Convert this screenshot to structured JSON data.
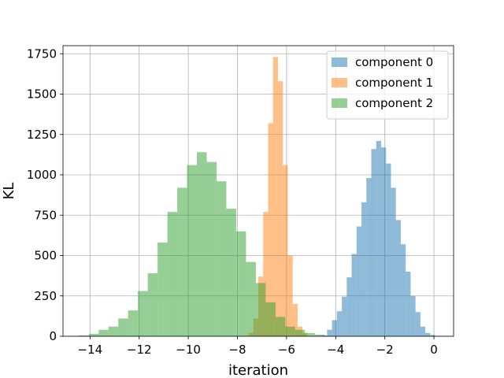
{
  "chart_data": {
    "type": "histogram",
    "title": "",
    "xlabel": "iteration",
    "ylabel": "KL",
    "xlim": [
      -15.1,
      0.8
    ],
    "ylim": [
      0,
      1800
    ],
    "xticks": [
      -14,
      -12,
      -10,
      -8,
      -6,
      -4,
      -2,
      0
    ],
    "yticks": [
      0,
      250,
      500,
      750,
      1000,
      1250,
      1500,
      1750
    ],
    "grid": true,
    "legend_position": "top-right",
    "series": [
      {
        "name": "component 0",
        "color": "#1f77b4",
        "alpha": 0.5,
        "bins": [
          {
            "x0": -4.55,
            "x1": -4.35,
            "count": 5
          },
          {
            "x0": -4.35,
            "x1": -4.15,
            "count": 40
          },
          {
            "x0": -4.15,
            "x1": -3.95,
            "count": 100
          },
          {
            "x0": -3.95,
            "x1": -3.75,
            "count": 155
          },
          {
            "x0": -3.75,
            "x1": -3.55,
            "count": 245
          },
          {
            "x0": -3.55,
            "x1": -3.35,
            "count": 365
          },
          {
            "x0": -3.35,
            "x1": -3.15,
            "count": 510
          },
          {
            "x0": -3.15,
            "x1": -2.95,
            "count": 680
          },
          {
            "x0": -2.95,
            "x1": -2.75,
            "count": 830
          },
          {
            "x0": -2.75,
            "x1": -2.55,
            "count": 980
          },
          {
            "x0": -2.55,
            "x1": -2.35,
            "count": 1160
          },
          {
            "x0": -2.35,
            "x1": -2.15,
            "count": 1210
          },
          {
            "x0": -2.15,
            "x1": -1.95,
            "count": 1170
          },
          {
            "x0": -1.95,
            "x1": -1.75,
            "count": 1070
          },
          {
            "x0": -1.75,
            "x1": -1.55,
            "count": 920
          },
          {
            "x0": -1.55,
            "x1": -1.35,
            "count": 720
          },
          {
            "x0": -1.35,
            "x1": -1.15,
            "count": 570
          },
          {
            "x0": -1.15,
            "x1": -0.95,
            "count": 400
          },
          {
            "x0": -0.95,
            "x1": -0.75,
            "count": 250
          },
          {
            "x0": -0.75,
            "x1": -0.55,
            "count": 150
          },
          {
            "x0": -0.55,
            "x1": -0.35,
            "count": 60
          },
          {
            "x0": -0.35,
            "x1": -0.15,
            "count": 20
          },
          {
            "x0": -0.15,
            "x1": 0.05,
            "count": 8
          }
        ]
      },
      {
        "name": "component 1",
        "color": "#ff7f0e",
        "alpha": 0.5,
        "bins": [
          {
            "x0": -7.55,
            "x1": -7.35,
            "count": 20
          },
          {
            "x0": -7.35,
            "x1": -7.15,
            "count": 110
          },
          {
            "x0": -7.15,
            "x1": -6.95,
            "count": 370
          },
          {
            "x0": -6.95,
            "x1": -6.75,
            "count": 770
          },
          {
            "x0": -6.75,
            "x1": -6.55,
            "count": 1320
          },
          {
            "x0": -6.55,
            "x1": -6.35,
            "count": 1730
          },
          {
            "x0": -6.35,
            "x1": -6.15,
            "count": 1580
          },
          {
            "x0": -6.15,
            "x1": -5.95,
            "count": 1060
          },
          {
            "x0": -5.95,
            "x1": -5.75,
            "count": 500
          },
          {
            "x0": -5.75,
            "x1": -5.55,
            "count": 200
          },
          {
            "x0": -5.55,
            "x1": -5.35,
            "count": 60
          },
          {
            "x0": -5.35,
            "x1": -5.15,
            "count": 20
          }
        ]
      },
      {
        "name": "component 2",
        "color": "#2ca02c",
        "alpha": 0.5,
        "bins": [
          {
            "x0": -14.45,
            "x1": -14.05,
            "count": 5
          },
          {
            "x0": -14.05,
            "x1": -13.65,
            "count": 15
          },
          {
            "x0": -13.65,
            "x1": -13.25,
            "count": 40
          },
          {
            "x0": -13.25,
            "x1": -12.85,
            "count": 60
          },
          {
            "x0": -12.85,
            "x1": -12.45,
            "count": 110
          },
          {
            "x0": -12.45,
            "x1": -12.05,
            "count": 160
          },
          {
            "x0": -12.05,
            "x1": -11.65,
            "count": 280
          },
          {
            "x0": -11.65,
            "x1": -11.25,
            "count": 390
          },
          {
            "x0": -11.25,
            "x1": -10.85,
            "count": 580
          },
          {
            "x0": -10.85,
            "x1": -10.45,
            "count": 770
          },
          {
            "x0": -10.45,
            "x1": -10.05,
            "count": 920
          },
          {
            "x0": -10.05,
            "x1": -9.65,
            "count": 1060
          },
          {
            "x0": -9.65,
            "x1": -9.25,
            "count": 1140
          },
          {
            "x0": -9.25,
            "x1": -8.85,
            "count": 1080
          },
          {
            "x0": -8.85,
            "x1": -8.45,
            "count": 960
          },
          {
            "x0": -8.45,
            "x1": -8.05,
            "count": 790
          },
          {
            "x0": -8.05,
            "x1": -7.65,
            "count": 650
          },
          {
            "x0": -7.65,
            "x1": -7.25,
            "count": 460
          },
          {
            "x0": -7.25,
            "x1": -6.85,
            "count": 330
          },
          {
            "x0": -6.85,
            "x1": -6.45,
            "count": 210
          },
          {
            "x0": -6.45,
            "x1": -6.05,
            "count": 120
          },
          {
            "x0": -6.05,
            "x1": -5.65,
            "count": 60
          },
          {
            "x0": -5.65,
            "x1": -5.25,
            "count": 40
          },
          {
            "x0": -5.25,
            "x1": -4.85,
            "count": 20
          },
          {
            "x0": -4.85,
            "x1": -4.45,
            "count": 10
          }
        ]
      }
    ]
  }
}
